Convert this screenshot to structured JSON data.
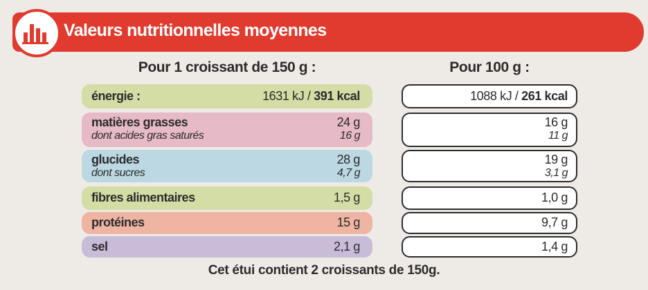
{
  "header": {
    "title": "Valeurs nutritionnelles moyennes"
  },
  "table": {
    "columns": [
      "Pour 1 croissant de 150 g :",
      "Pour 100 g :"
    ],
    "rows": [
      {
        "label": "énergie :",
        "portion": {
          "kj": "1631 kJ /",
          "kcal": "391 kcal"
        },
        "per_100g": {
          "kj": "1088 kJ /",
          "kcal": "261 kcal"
        }
      },
      {
        "label": "matières grasses",
        "portion": "24 g",
        "per_100g": "16 g",
        "sub": {
          "label": "dont acides gras saturés",
          "portion": "16 g",
          "per_100g": "11 g"
        }
      },
      {
        "label": "glucides",
        "portion": "28 g",
        "per_100g": "19 g",
        "sub": {
          "label": "dont sucres",
          "portion": "4,7 g",
          "per_100g": "3,1 g"
        }
      },
      {
        "label": "fibres alimentaires",
        "portion": "1,5 g",
        "per_100g": "1,0 g"
      },
      {
        "label": "protéines",
        "portion": "15 g",
        "per_100g": "9,7 g"
      },
      {
        "label": "sel",
        "portion": "2,1 g",
        "per_100g": "1,4 g"
      }
    ]
  },
  "footer": "Cet étui contient 2 croissants de 150g."
}
